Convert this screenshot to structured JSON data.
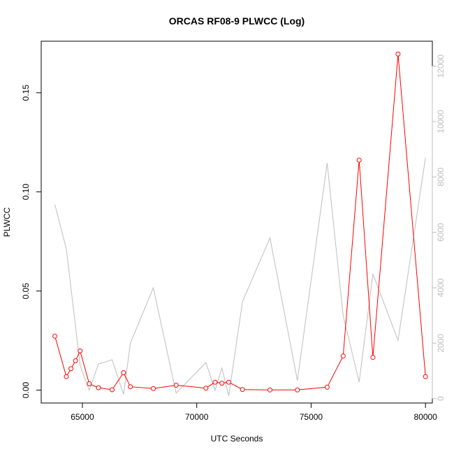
{
  "chart_data": {
    "type": "line",
    "title": "ORCAS RF08-9 PLWCC (Log)",
    "xlabel": "UTC Seconds",
    "ylabel": "PLWCC",
    "xlim": [
      63200,
      80300
    ],
    "ylim": [
      -0.0065,
      0.176
    ],
    "y2lim": [
      -160,
      12900
    ],
    "xticks": [
      65000,
      70000,
      75000,
      80000
    ],
    "xtick_labels": [
      "65000",
      "70000",
      "75000",
      "80000"
    ],
    "yticks": [
      0.0,
      0.05,
      0.1,
      0.15
    ],
    "ytick_labels": [
      "0.00",
      "0.05",
      "0.10",
      "0.15"
    ],
    "y2ticks": [
      0,
      2000,
      4000,
      6000,
      8000,
      10000,
      12000
    ],
    "y2tick_labels": [
      "0",
      "2000",
      "4000",
      "6000",
      "8000",
      "10000",
      "12000"
    ],
    "grid": false,
    "series": [
      {
        "color": "#ff0000",
        "axis": "left",
        "markers": true,
        "x": [
          63800,
          64300,
          64500,
          64700,
          64900,
          65300,
          65700,
          66300,
          66800,
          67100,
          68100,
          69100,
          70400,
          70800,
          71100,
          71400,
          72000,
          73200,
          74400,
          75700,
          76400,
          77100,
          77700,
          78800,
          80000
        ],
        "y": [
          0.0272,
          0.0068,
          0.0108,
          0.0148,
          0.0198,
          0.0032,
          0.0012,
          0.0002,
          0.0088,
          0.0017,
          0.0008,
          0.0025,
          0.001,
          0.004,
          0.0035,
          0.004,
          0.0003,
          0.0001,
          0.0001,
          0.0015,
          0.0172,
          0.116,
          0.0165,
          0.1695,
          0.0068
        ]
      },
      {
        "color": "#bebebe",
        "axis": "right",
        "markers": false,
        "x": [
          63800,
          64300,
          64900,
          65300,
          65700,
          66300,
          66800,
          67100,
          68100,
          69100,
          70400,
          70800,
          71100,
          71400,
          72000,
          73200,
          74400,
          75700,
          76400,
          77100,
          77700,
          78800,
          80000
        ],
        "y": [
          7000,
          5400,
          1200,
          300,
          1250,
          1400,
          150,
          2000,
          4000,
          200,
          1300,
          300,
          1100,
          100,
          3500,
          5800,
          650,
          8500,
          3000,
          600,
          4500,
          2100,
          8700
        ]
      }
    ]
  }
}
